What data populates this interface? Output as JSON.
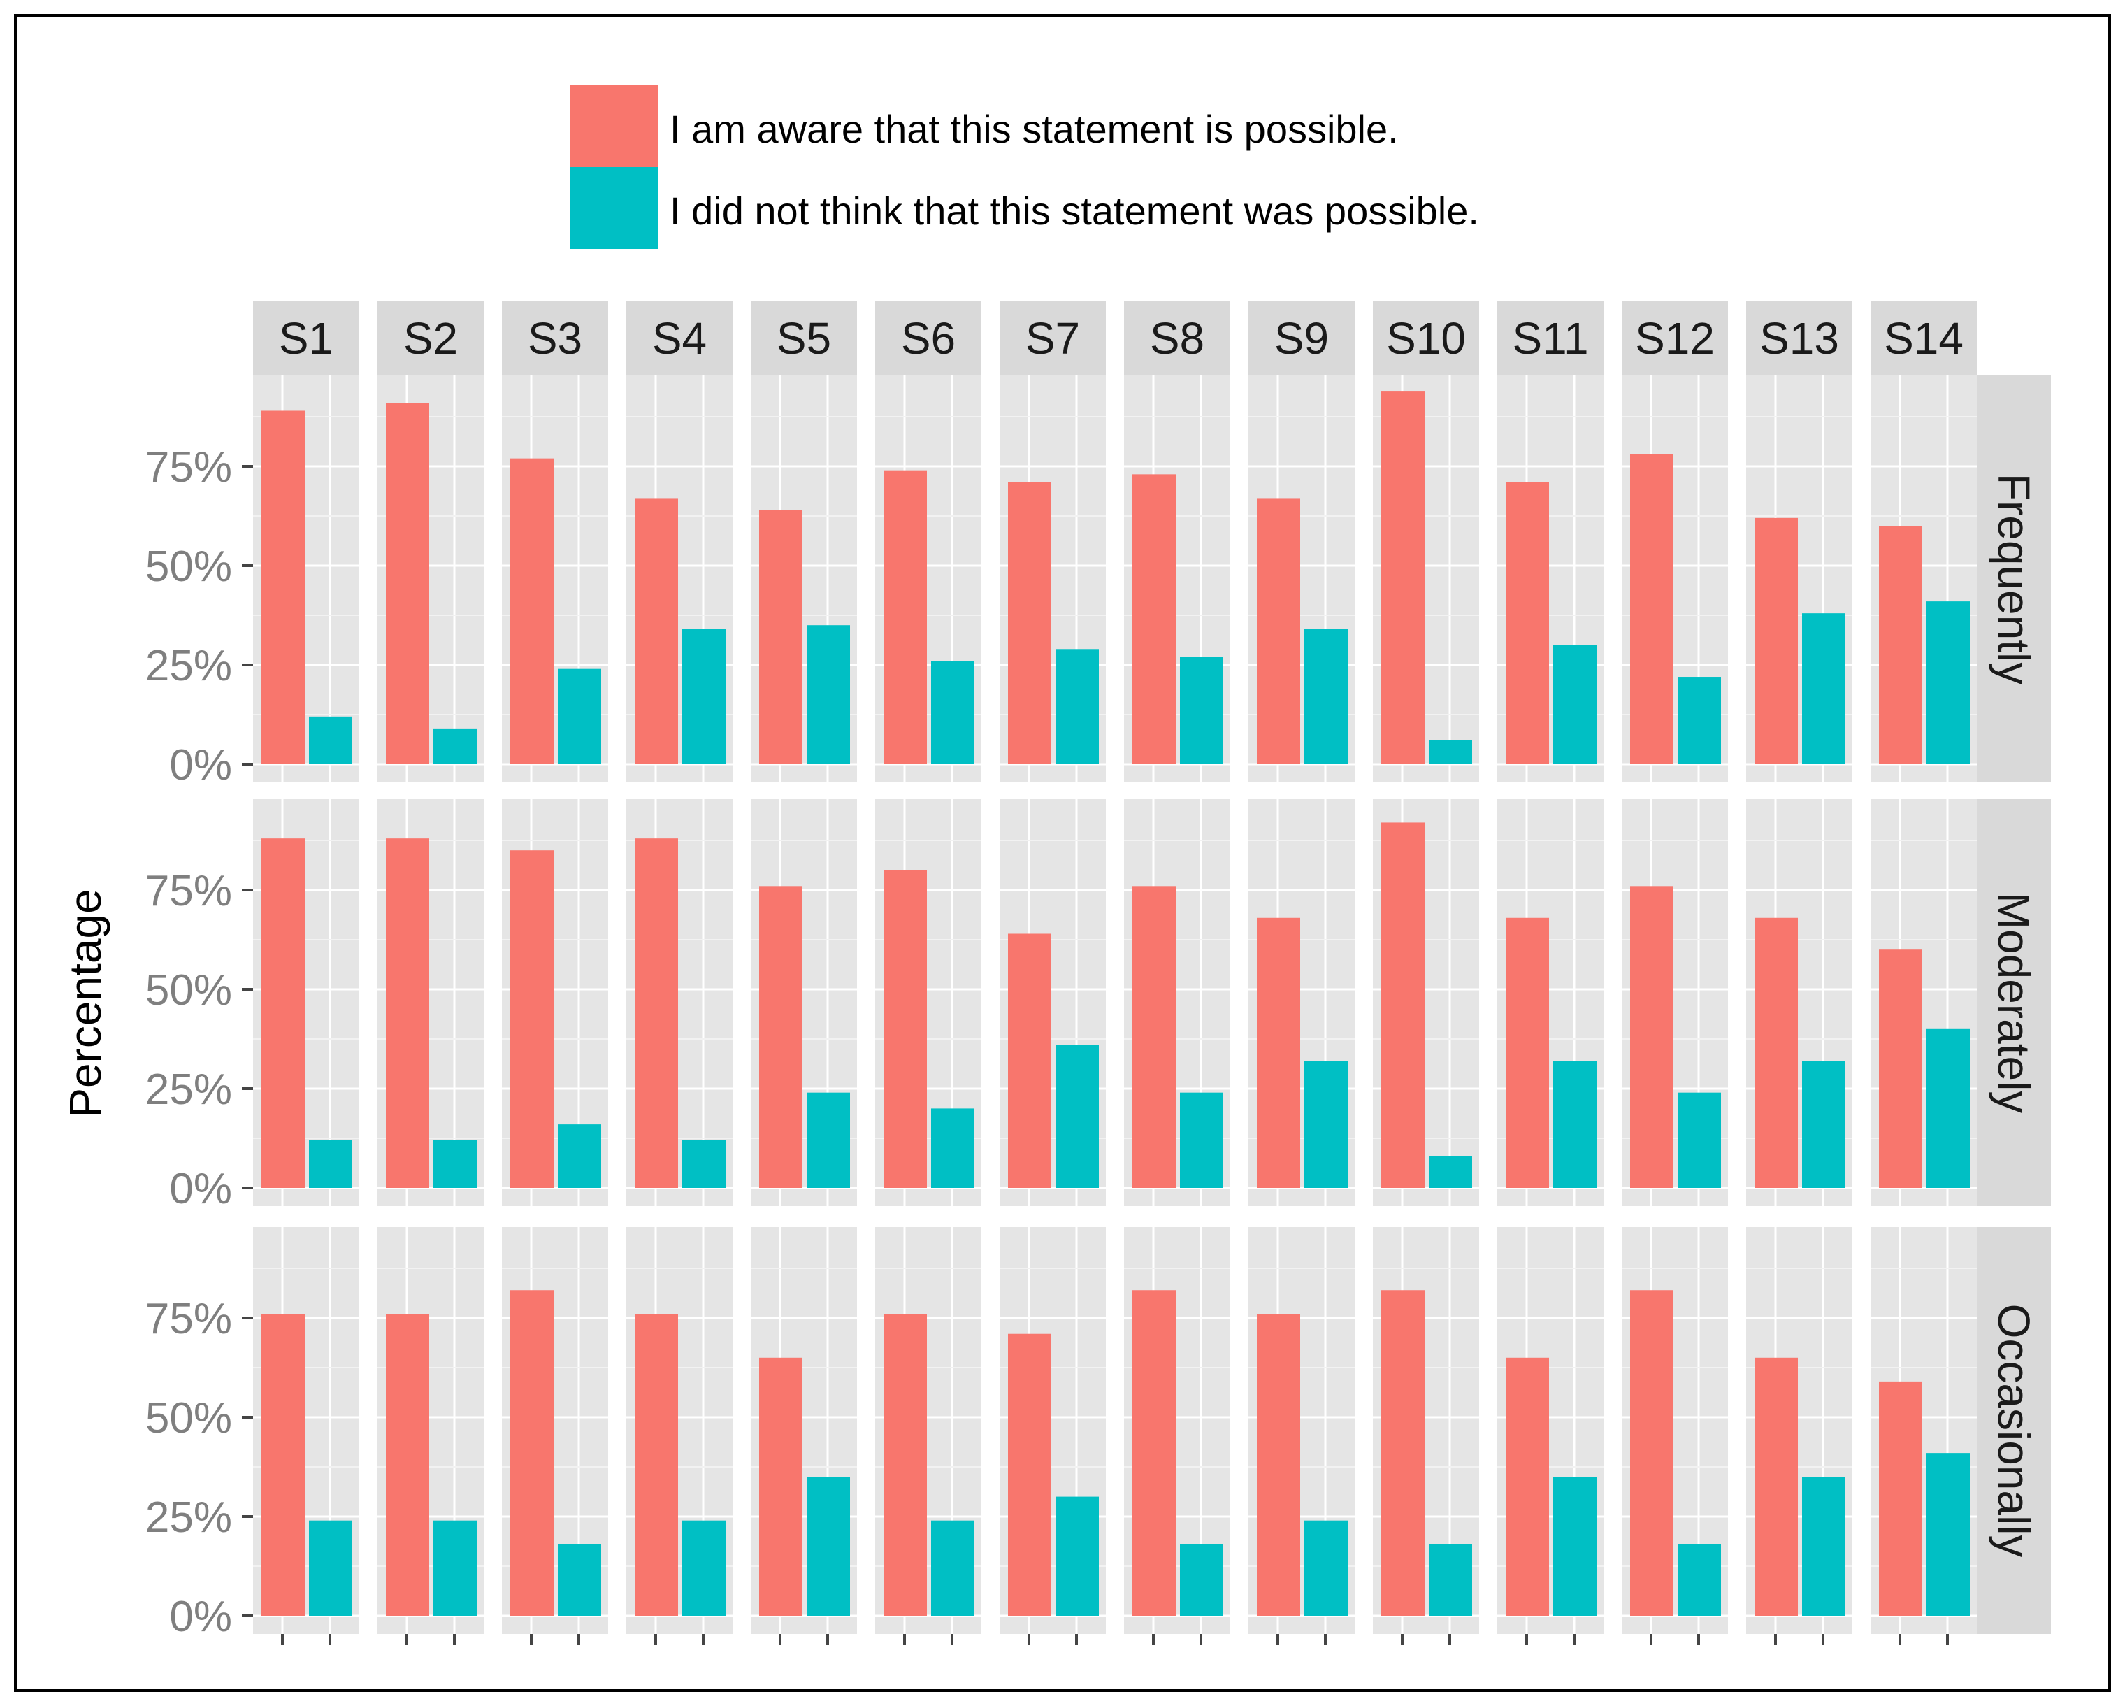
{
  "chart_data": {
    "type": "bar",
    "layout": "facet-grid",
    "ylabel": "Percentage",
    "xlabel": "",
    "ylim": [
      0,
      1
    ],
    "y_ticks": [
      "0%",
      "25%",
      "50%",
      "75%"
    ],
    "y_tick_values": [
      0,
      0.25,
      0.5,
      0.75
    ],
    "grid": true,
    "legend_position": "top",
    "legend": [
      {
        "label": "I am aware that this statement is possible.",
        "color": "#F8766D"
      },
      {
        "label": "I did not think that this statement was possible.",
        "color": "#00BFC4"
      }
    ],
    "columns": [
      "S1",
      "S2",
      "S3",
      "S4",
      "S5",
      "S6",
      "S7",
      "S8",
      "S9",
      "S10",
      "S11",
      "S12",
      "S13",
      "S14"
    ],
    "rows": [
      {
        "name": "Frequently",
        "aware": [
          0.89,
          0.91,
          0.77,
          0.67,
          0.64,
          0.74,
          0.71,
          0.73,
          0.67,
          0.94,
          0.71,
          0.78,
          0.62,
          0.6
        ],
        "not_thought": [
          0.12,
          0.09,
          0.24,
          0.34,
          0.35,
          0.26,
          0.29,
          0.27,
          0.34,
          0.06,
          0.3,
          0.22,
          0.38,
          0.41
        ]
      },
      {
        "name": "Moderately",
        "aware": [
          0.88,
          0.88,
          0.85,
          0.88,
          0.76,
          0.8,
          0.64,
          0.76,
          0.68,
          0.92,
          0.68,
          0.76,
          0.68,
          0.6
        ],
        "not_thought": [
          0.12,
          0.12,
          0.16,
          0.12,
          0.24,
          0.2,
          0.36,
          0.24,
          0.32,
          0.08,
          0.32,
          0.24,
          0.32,
          0.4
        ]
      },
      {
        "name": "Occasionally",
        "aware": [
          0.76,
          0.76,
          0.82,
          0.76,
          0.65,
          0.76,
          0.71,
          0.82,
          0.76,
          0.82,
          0.65,
          0.82,
          0.65,
          0.59
        ],
        "not_thought": [
          0.24,
          0.24,
          0.18,
          0.24,
          0.35,
          0.24,
          0.3,
          0.18,
          0.24,
          0.18,
          0.35,
          0.18,
          0.35,
          0.41
        ]
      }
    ]
  }
}
